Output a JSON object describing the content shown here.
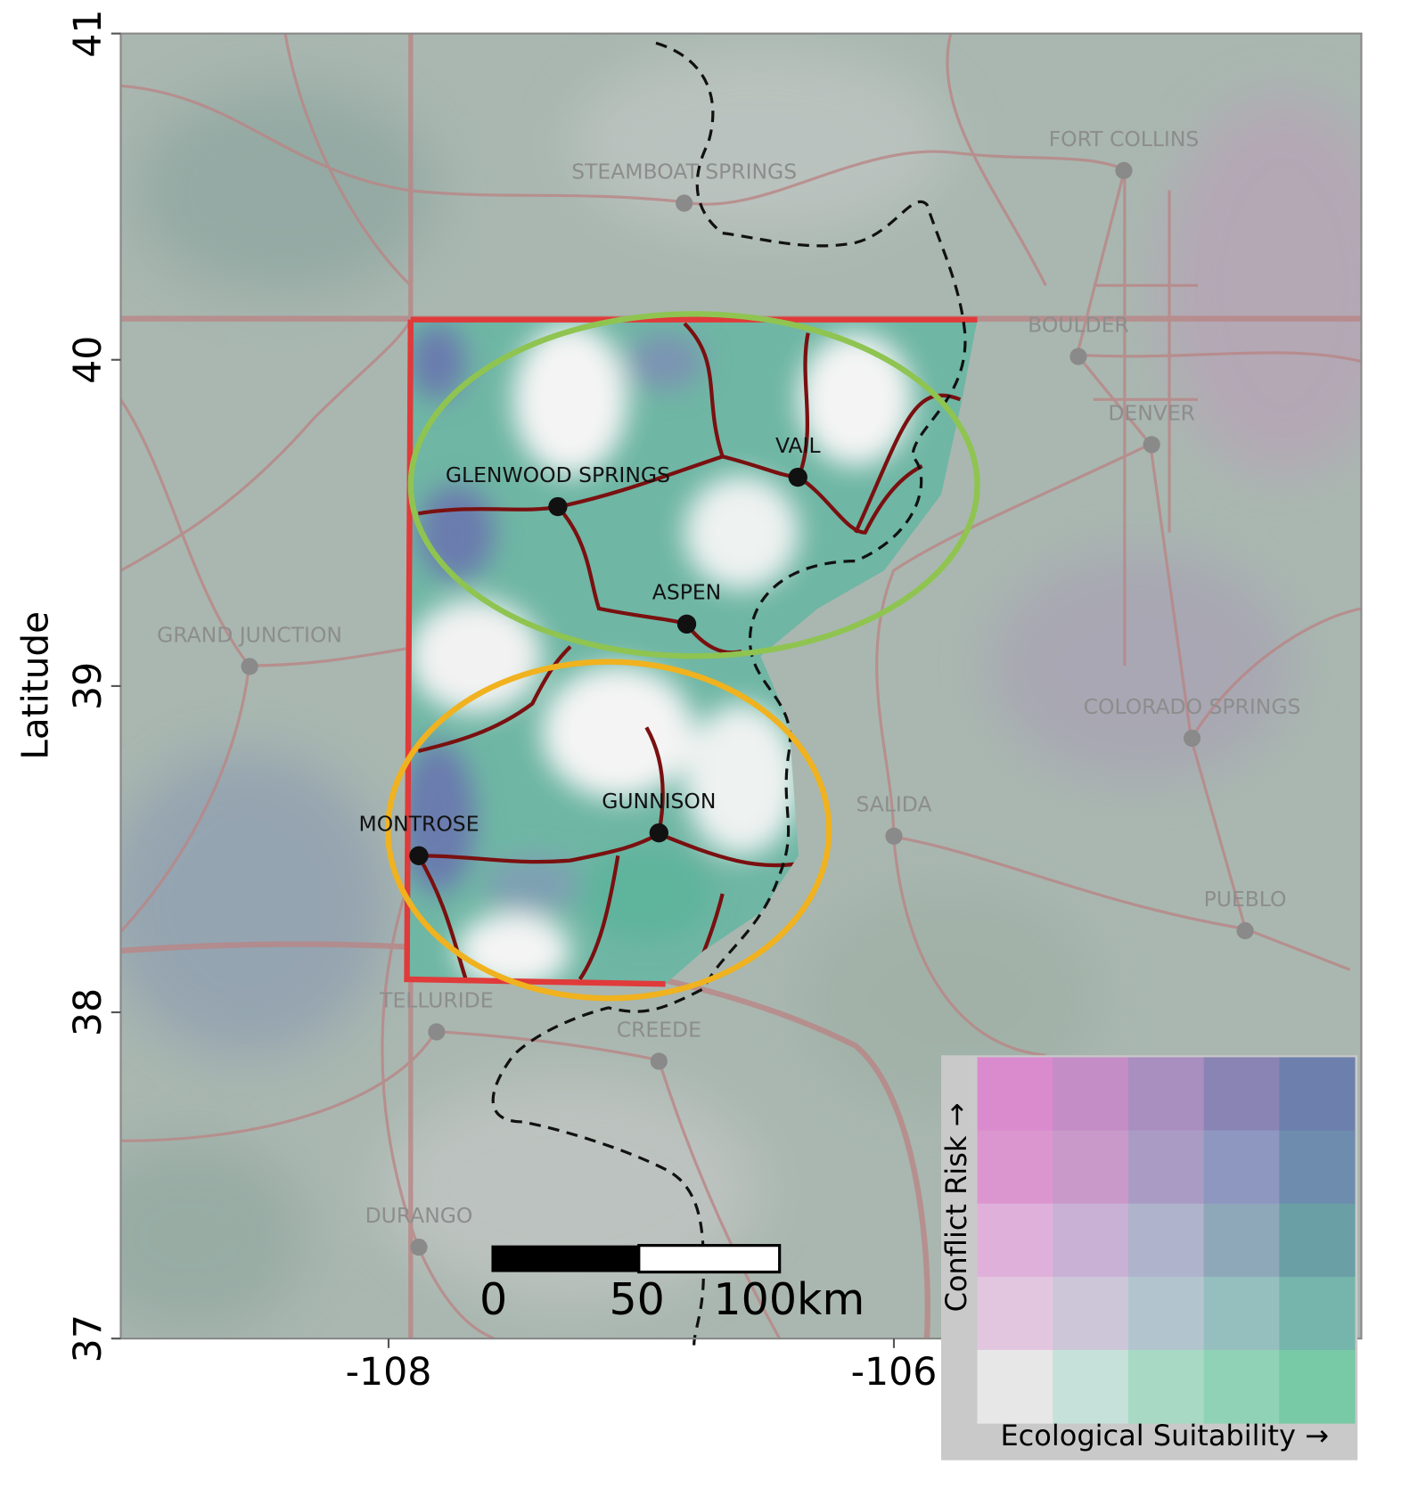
{
  "map": {
    "ylabel": "Latitude",
    "xlim": [
      -109.06,
      -104.15
    ],
    "ylim": [
      37,
      41
    ],
    "xticks": [
      -108,
      -106
    ],
    "yticks": [
      41,
      40,
      39,
      38,
      37
    ],
    "cities": [
      {
        "name": "STEAMBOAT SPRINGS",
        "lon": -106.83,
        "lat": 40.48,
        "highlight": false
      },
      {
        "name": "FORT COLLINS",
        "lon": -105.09,
        "lat": 40.58,
        "highlight": false
      },
      {
        "name": "BOULDER",
        "lon": -105.27,
        "lat": 40.01,
        "highlight": false
      },
      {
        "name": "DENVER",
        "lon": -104.98,
        "lat": 39.74,
        "highlight": false
      },
      {
        "name": "GLENWOOD SPRINGS",
        "lon": -107.33,
        "lat": 39.55,
        "highlight": true
      },
      {
        "name": "VAIL",
        "lon": -106.38,
        "lat": 39.64,
        "highlight": true
      },
      {
        "name": "ASPEN",
        "lon": -106.82,
        "lat": 39.19,
        "highlight": true
      },
      {
        "name": "GRAND JUNCTION",
        "lon": -108.55,
        "lat": 39.06,
        "highlight": false
      },
      {
        "name": "COLORADO SPRINGS",
        "lon": -104.82,
        "lat": 38.84,
        "highlight": false
      },
      {
        "name": "GUNNISON",
        "lon": -106.93,
        "lat": 38.55,
        "highlight": true
      },
      {
        "name": "MONTROSE",
        "lon": -107.88,
        "lat": 38.48,
        "highlight": true
      },
      {
        "name": "SALIDA",
        "lon": -106.0,
        "lat": 38.54,
        "highlight": false
      },
      {
        "name": "PUEBLO",
        "lon": -104.61,
        "lat": 38.25,
        "highlight": false
      },
      {
        "name": "TELLURIDE",
        "lon": -107.81,
        "lat": 37.94,
        "highlight": false
      },
      {
        "name": "CREEDE",
        "lon": -106.93,
        "lat": 37.85,
        "highlight": false
      },
      {
        "name": "DURANGO",
        "lon": -107.88,
        "lat": 37.28,
        "highlight": false
      }
    ],
    "scale_bar": {
      "labels": [
        "0",
        "50",
        "100km"
      ]
    },
    "legend": {
      "y_label": "Conflict Risk →",
      "x_label": "Ecological Suitability →",
      "colors": [
        [
          "#d98bce",
          "#c48dc6",
          "#a98ec0",
          "#8a84b4",
          "#6d80ad"
        ],
        [
          "#dc96cf",
          "#c99ac9",
          "#aa9bc5",
          "#8e97c0",
          "#6e8cae"
        ],
        [
          "#dfb1da",
          "#c9b0d5",
          "#afb3cb",
          "#8fa8b9",
          "#6a9fa6"
        ],
        [
          "#e2c6df",
          "#cdc6d9",
          "#b2c5cf",
          "#95bfbf",
          "#75b5ab"
        ],
        [
          "#e7e7e7",
          "#c6e0da",
          "#a8d9c4",
          "#8fd2b5",
          "#78c9a6"
        ]
      ]
    }
  }
}
